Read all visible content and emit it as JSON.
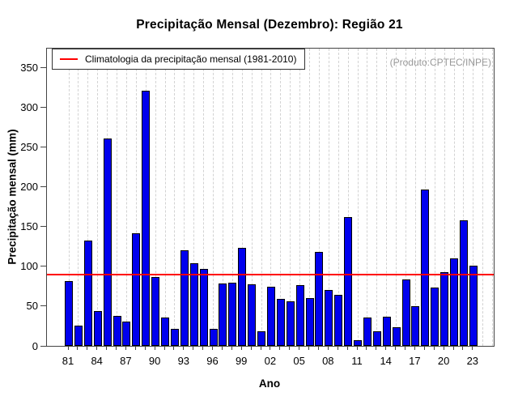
{
  "title": "Precipitação Mensal (Dezembro): Região 21",
  "watermark": "(Produto:CPTEC/INPE)",
  "legend": {
    "label": "Climatologia da precipitação mensal (1981-2010)"
  },
  "axes": {
    "ylabel": "Precipitação mensal (mm)",
    "xlabel": "Ano",
    "yticks": [
      0,
      50,
      100,
      150,
      200,
      250,
      300,
      350
    ],
    "xtick_labels": [
      "81",
      "84",
      "87",
      "90",
      "93",
      "96",
      "99",
      "02",
      "05",
      "08",
      "11",
      "14",
      "17",
      "20",
      "23"
    ]
  },
  "chart_data": {
    "type": "bar",
    "title": "Precipitação Mensal (Dezembro): Região 21",
    "xlabel": "Ano",
    "ylabel": "Precipitação mensal (mm)",
    "ylim": [
      0,
      365
    ],
    "grid": "vertical-dashed",
    "legend_position": "top-left",
    "bar_color": "#0000EE",
    "line_color": "#FF0000",
    "climatology_value": 90,
    "climatology_label": "Climatologia da precipitação mensal (1981-2010)",
    "categories": [
      "81",
      "82",
      "83",
      "84",
      "85",
      "86",
      "87",
      "88",
      "89",
      "90",
      "91",
      "92",
      "93",
      "94",
      "95",
      "96",
      "97",
      "98",
      "99",
      "00",
      "01",
      "02",
      "03",
      "04",
      "05",
      "06",
      "07",
      "08",
      "09",
      "10",
      "11",
      "12",
      "13",
      "14",
      "15",
      "16",
      "17",
      "18",
      "19",
      "20",
      "21",
      "22",
      "23"
    ],
    "values": [
      82,
      25,
      132,
      44,
      261,
      38,
      31,
      142,
      321,
      87,
      36,
      21,
      120,
      104,
      97,
      21,
      78,
      80,
      123,
      77,
      18,
      74,
      59,
      56,
      76,
      60,
      118,
      70,
      64,
      162,
      7,
      36,
      18,
      37,
      23,
      84,
      50,
      197,
      73,
      93,
      110,
      158,
      101
    ]
  }
}
